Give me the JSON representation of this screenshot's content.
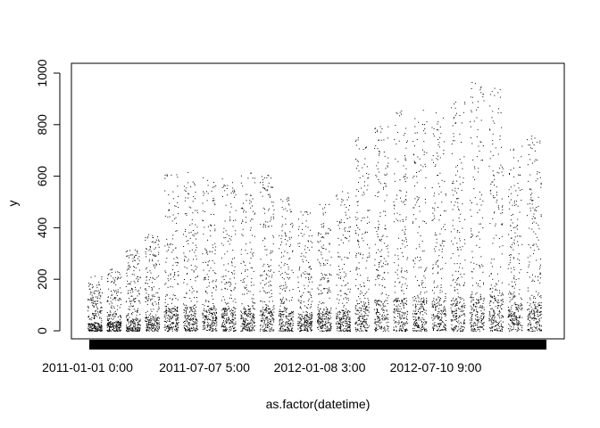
{
  "chart_data": {
    "type": "scatter",
    "title": "",
    "xlabel": "as.factor(datetime)",
    "ylabel": "y",
    "ylim": [
      0,
      1000
    ],
    "y_ticks": [
      "0",
      "200",
      "400",
      "600",
      "800",
      "1000"
    ],
    "x_tick_labels": [
      "2011-01-01 0:00",
      "2011-07-07 5:00",
      "2012-01-08 3:00",
      "2012-07-10 9:00"
    ],
    "grid": false,
    "legend": "none",
    "point_color": "#000000",
    "cluster_max_y": [
      215,
      245,
      320,
      380,
      610,
      630,
      600,
      600,
      625,
      610,
      520,
      470,
      510,
      545,
      790,
      800,
      860,
      870,
      870,
      890,
      975,
      950,
      720,
      760
    ]
  }
}
